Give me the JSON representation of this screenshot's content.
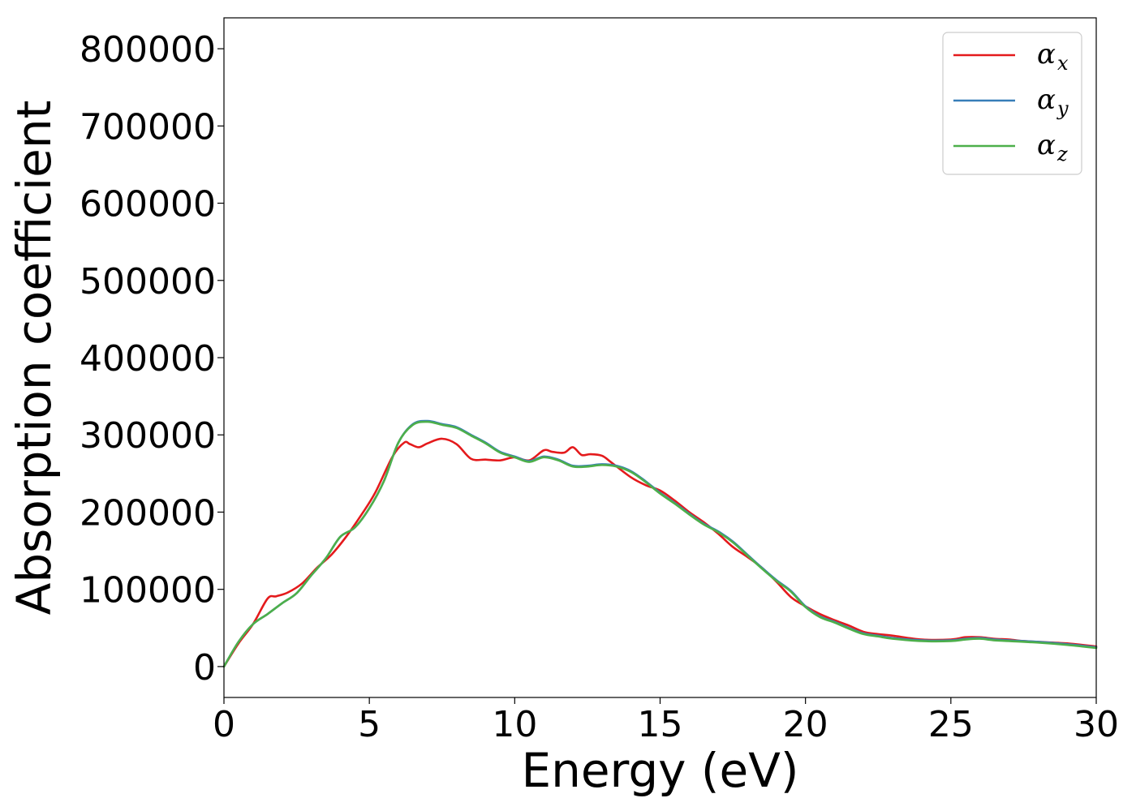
{
  "chart_data": {
    "type": "line",
    "title": "",
    "xlabel": "Energy (eV)",
    "ylabel": "Absorption coefficient",
    "xlim": [
      0,
      30
    ],
    "ylim": [
      -40000,
      840000
    ],
    "xticks": [
      0,
      5,
      10,
      15,
      20,
      25,
      30
    ],
    "yticks": [
      0,
      100000,
      200000,
      300000,
      400000,
      500000,
      600000,
      700000,
      800000
    ],
    "grid": false,
    "legend_position": "top-right",
    "series": [
      {
        "name": "α_x",
        "legend_symbol": "α",
        "legend_subscript": "x",
        "color": "#e41a1c",
        "x": [
          0,
          0.5,
          1,
          1.5,
          1.8,
          2.2,
          2.7,
          3.2,
          3.7,
          4.2,
          4.7,
          5.2,
          5.8,
          6.2,
          6.4,
          6.7,
          7.0,
          7.5,
          8.0,
          8.5,
          9.0,
          9.5,
          10.0,
          10.5,
          11.0,
          11.3,
          11.7,
          12.0,
          12.3,
          12.6,
          13.0,
          13.3,
          14.0,
          14.5,
          15.0,
          15.5,
          16.0,
          16.5,
          17.0,
          17.5,
          18.0,
          18.5,
          19.0,
          19.5,
          20.0,
          20.5,
          21.0,
          21.5,
          22.0,
          22.5,
          23.0,
          24.0,
          25.0,
          25.5,
          26.0,
          26.5,
          27.0,
          27.5,
          28.0,
          29.0,
          30.0
        ],
        "y": [
          0,
          30000,
          55000,
          88000,
          91000,
          96000,
          108000,
          128000,
          145000,
          168000,
          195000,
          225000,
          272000,
          290000,
          288000,
          284000,
          289000,
          295000,
          288000,
          269000,
          268000,
          267000,
          271000,
          267000,
          280000,
          278000,
          277000,
          284000,
          274000,
          275000,
          273000,
          265000,
          245000,
          235000,
          228000,
          215000,
          200000,
          187000,
          172000,
          155000,
          142000,
          128000,
          110000,
          90000,
          78000,
          68000,
          60000,
          53000,
          45000,
          42000,
          40000,
          35000,
          35000,
          38000,
          38000,
          36000,
          35000,
          33000,
          32000,
          30000,
          26000
        ]
      },
      {
        "name": "α_y",
        "legend_symbol": "α",
        "legend_subscript": "y",
        "color": "#377eb8",
        "x": [
          0,
          0.5,
          1,
          1.5,
          2.0,
          2.5,
          3.0,
          3.5,
          4.0,
          4.5,
          5.0,
          5.5,
          6.0,
          6.5,
          7.0,
          7.5,
          8.0,
          8.5,
          9.0,
          9.5,
          10.0,
          10.5,
          11.0,
          11.5,
          12.0,
          12.5,
          13.0,
          13.5,
          14.0,
          14.5,
          15.0,
          15.5,
          16.0,
          16.5,
          17.0,
          17.5,
          18.0,
          18.5,
          19.0,
          19.5,
          20.0,
          20.5,
          21.0,
          21.5,
          22.0,
          22.5,
          23.0,
          24.0,
          25.0,
          25.5,
          26.0,
          26.5,
          27.0,
          28.0,
          29.0,
          30.0
        ],
        "y": [
          0,
          32000,
          55000,
          68000,
          82000,
          95000,
          118000,
          140000,
          168000,
          180000,
          205000,
          240000,
          290000,
          314000,
          318000,
          314000,
          310000,
          300000,
          290000,
          278000,
          272000,
          266000,
          272000,
          268000,
          260000,
          260000,
          262000,
          260000,
          253000,
          240000,
          225000,
          212000,
          198000,
          185000,
          175000,
          162000,
          145000,
          128000,
          112000,
          98000,
          78000,
          65000,
          58000,
          50000,
          43000,
          40000,
          37000,
          34000,
          34000,
          36000,
          37000,
          35000,
          34000,
          32000,
          29000,
          25000
        ]
      },
      {
        "name": "α_z",
        "legend_symbol": "α",
        "legend_subscript": "z",
        "color": "#4daf4a",
        "x": [
          0,
          0.5,
          1,
          1.5,
          2.0,
          2.5,
          3.0,
          3.5,
          4.0,
          4.5,
          5.0,
          5.5,
          6.0,
          6.5,
          7.0,
          7.5,
          8.0,
          8.5,
          9.0,
          9.5,
          10.0,
          10.5,
          11.0,
          11.5,
          12.0,
          12.5,
          13.0,
          13.5,
          14.0,
          14.5,
          15.0,
          15.5,
          16.0,
          16.5,
          17.0,
          17.5,
          18.0,
          18.5,
          19.0,
          19.5,
          20.0,
          20.5,
          21.0,
          21.5,
          22.0,
          22.5,
          23.0,
          24.0,
          25.0,
          25.5,
          26.0,
          26.5,
          27.0,
          28.0,
          29.0,
          30.0
        ],
        "y": [
          0,
          32000,
          55000,
          68000,
          82000,
          95000,
          118000,
          140000,
          168000,
          180000,
          205000,
          240000,
          290000,
          313000,
          317000,
          313000,
          309000,
          299000,
          289000,
          277000,
          271000,
          265000,
          271000,
          267000,
          259000,
          259000,
          261000,
          259000,
          252000,
          239000,
          224000,
          211000,
          197000,
          184000,
          174000,
          161000,
          144000,
          127000,
          111000,
          97000,
          77000,
          64000,
          57000,
          49000,
          42000,
          39000,
          36000,
          33000,
          33000,
          35000,
          36000,
          34000,
          33000,
          31000,
          28000,
          24000
        ]
      }
    ]
  }
}
